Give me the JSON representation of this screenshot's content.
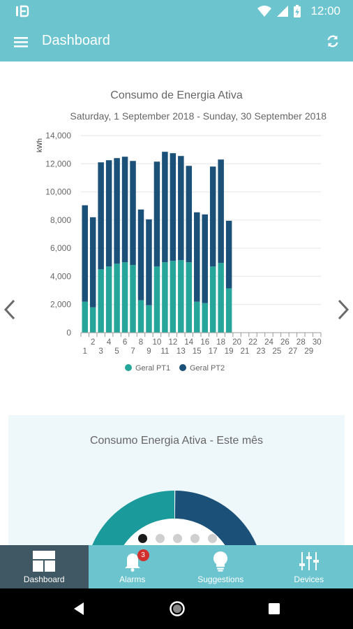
{
  "status_bar": {
    "time": "12:00",
    "icons": [
      "app-notification-icon",
      "wifi-icon",
      "signal-icon",
      "battery-charging-icon"
    ]
  },
  "header": {
    "title": "Dashboard",
    "menu_icon": "hamburger-menu-icon",
    "refresh_icon": "refresh-icon"
  },
  "chart_data": {
    "type": "bar",
    "stacked": true,
    "title": "Consumo de Energia Ativa",
    "subtitle": "Saturday, 1 September 2018 - Sunday, 30 September 2018",
    "ylabel": "kWh",
    "xlabel": "",
    "ylim": [
      0,
      14000
    ],
    "yticks": [
      0,
      2000,
      4000,
      6000,
      8000,
      10000,
      12000,
      14000
    ],
    "ytick_labels": [
      "0",
      "2,000",
      "4,000",
      "6,000",
      "8,000",
      "10,000",
      "12,000",
      "14,000"
    ],
    "categories": [
      "1",
      "2",
      "3",
      "4",
      "5",
      "6",
      "7",
      "8",
      "9",
      "10",
      "11",
      "12",
      "13",
      "14",
      "15",
      "16",
      "17",
      "18",
      "19",
      "20",
      "21",
      "22",
      "23",
      "24",
      "25",
      "26",
      "27",
      "28",
      "29",
      "30"
    ],
    "series": [
      {
        "name": "Geral PT1",
        "color": "#26a69a",
        "values": [
          2200,
          1800,
          4500,
          4700,
          4900,
          5000,
          4800,
          2300,
          1950,
          4700,
          5000,
          5100,
          5150,
          5000,
          2200,
          2100,
          4700,
          4950,
          3150,
          0,
          0,
          0,
          0,
          0,
          0,
          0,
          0,
          0,
          0,
          0
        ]
      },
      {
        "name": "Geral PT2",
        "color": "#1b5178",
        "values": [
          6850,
          6400,
          7600,
          7550,
          7500,
          7500,
          7400,
          6450,
          6100,
          7450,
          7850,
          7650,
          7400,
          6850,
          6350,
          6300,
          7100,
          7350,
          4800,
          0,
          0,
          0,
          0,
          0,
          0,
          0,
          0,
          0,
          0,
          0
        ]
      }
    ],
    "grid": true,
    "legend": "bottom-center"
  },
  "nav": {
    "prev": "chevron-left-icon",
    "next": "chevron-right-icon"
  },
  "card": {
    "title": "Consumo Energia Ativa - Este mês",
    "donut_colors": [
      "#1a9a9b",
      "#1b5178"
    ],
    "pages": 5,
    "active_page": 0
  },
  "bottom_nav": {
    "items": [
      {
        "label": "Dashboard",
        "icon": "dashboard-icon",
        "active": true
      },
      {
        "label": "Alarms",
        "icon": "bell-icon",
        "badge": "3"
      },
      {
        "label": "Suggestions",
        "icon": "lightbulb-icon"
      },
      {
        "label": "Devices",
        "icon": "sliders-icon"
      }
    ]
  }
}
